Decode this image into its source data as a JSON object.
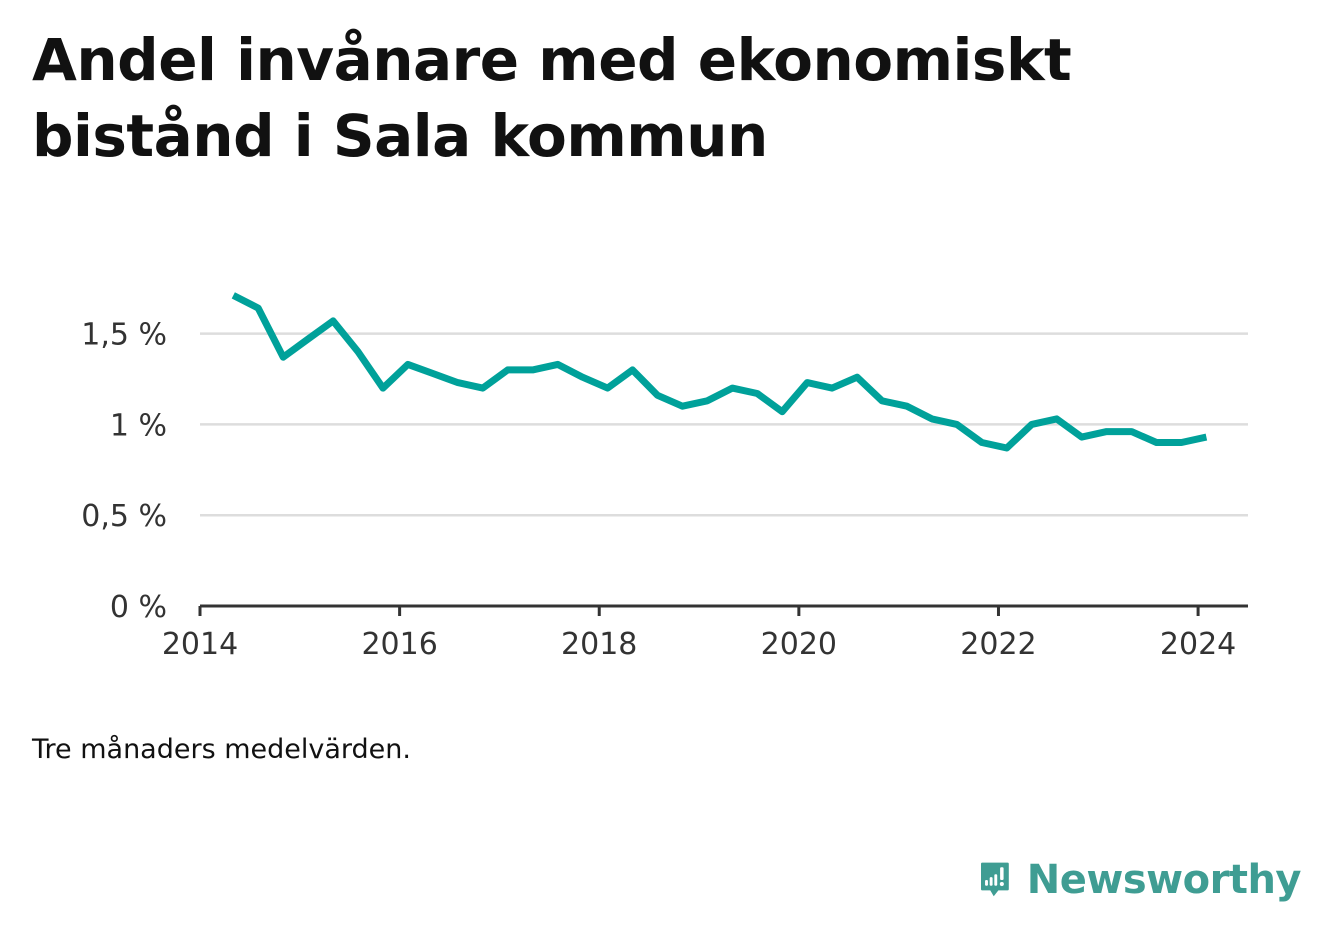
{
  "title": "Andel invånare med ekonomiskt bistånd i Sala kommun",
  "note": "Tre månaders medelvärden.",
  "brand": {
    "name": "Newsworthy",
    "color": "#3f9d93",
    "icon": "bar-chart-speech-bubble-icon"
  },
  "chart_data": {
    "type": "line",
    "series": [
      {
        "color": "#00a19a",
        "x": [
          "2014-05",
          "2014-08",
          "2014-11",
          "2015-02",
          "2015-05",
          "2015-08",
          "2015-11",
          "2016-02",
          "2016-05",
          "2016-08",
          "2016-11",
          "2017-02",
          "2017-05",
          "2017-08",
          "2017-11",
          "2018-02",
          "2018-05",
          "2018-08",
          "2018-11",
          "2019-02",
          "2019-05",
          "2019-08",
          "2019-11",
          "2020-02",
          "2020-05",
          "2020-08",
          "2020-11",
          "2021-02",
          "2021-05",
          "2021-08",
          "2021-11",
          "2022-02",
          "2022-05",
          "2022-08",
          "2022-11",
          "2023-02",
          "2023-05",
          "2023-08",
          "2023-11",
          "2024-02"
        ],
        "values": [
          1.71,
          1.64,
          1.37,
          1.47,
          1.57,
          1.4,
          1.2,
          1.33,
          1.28,
          1.23,
          1.2,
          1.3,
          1.3,
          1.33,
          1.26,
          1.2,
          1.3,
          1.16,
          1.1,
          1.13,
          1.2,
          1.17,
          1.07,
          1.23,
          1.2,
          1.26,
          1.13,
          1.1,
          1.03,
          1.0,
          0.9,
          0.87,
          1.0,
          1.03,
          0.93,
          0.96,
          0.96,
          0.9,
          0.9,
          0.93
        ]
      }
    ],
    "x_ticks": [
      "2014",
      "2016",
      "2018",
      "2020",
      "2022",
      "2024"
    ],
    "y_ticks": [
      {
        "value": 0,
        "label": "0 %"
      },
      {
        "value": 0.5,
        "label": "0,5 %"
      },
      {
        "value": 1,
        "label": "1 %"
      },
      {
        "value": 1.5,
        "label": "1,5 %"
      }
    ],
    "xlim": [
      "2014-01",
      "2024-07"
    ],
    "ylim": [
      0,
      1.85
    ],
    "grid": "horizontal",
    "legend": "none"
  }
}
